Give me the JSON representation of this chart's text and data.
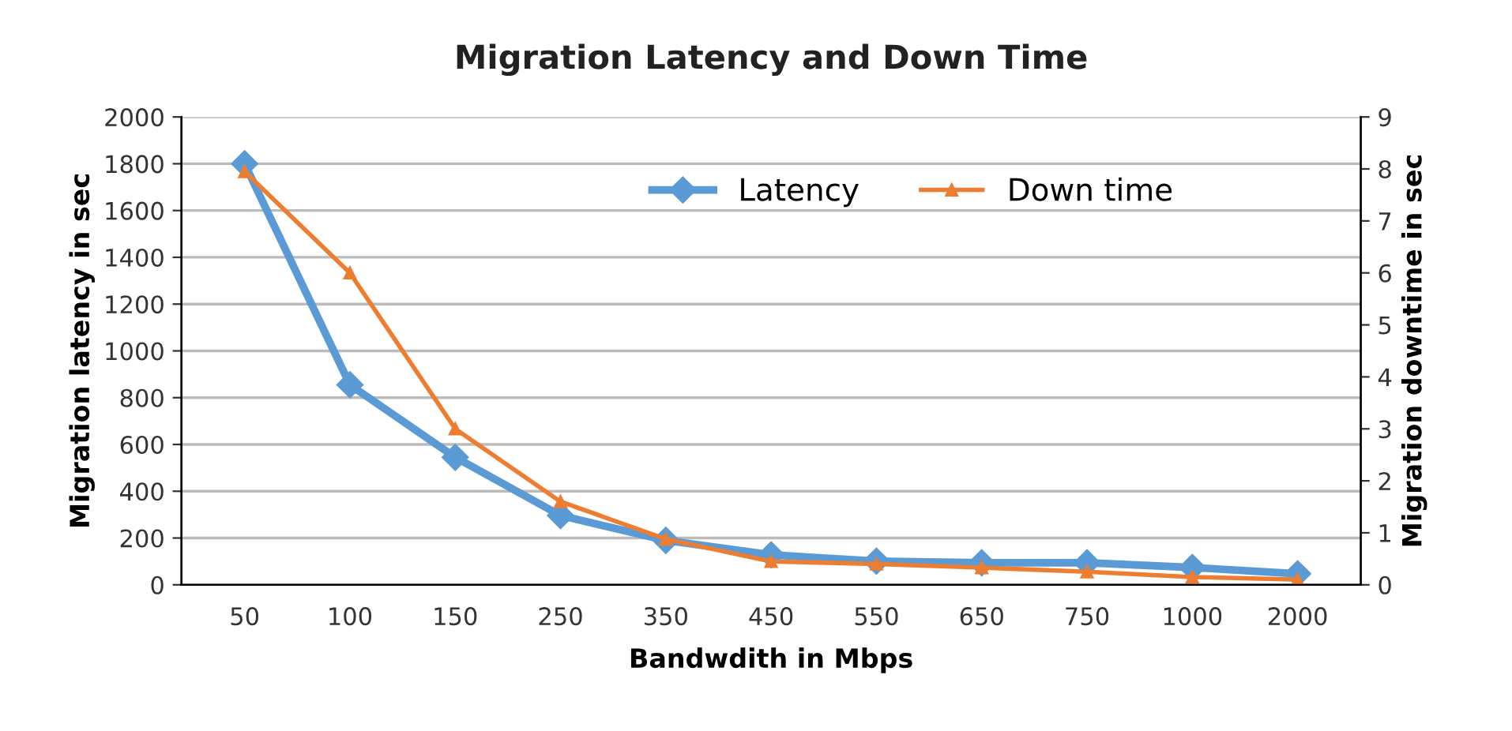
{
  "chart_data": {
    "type": "line",
    "title": "Migration Latency and Down Time",
    "xlabel": "Bandwdith in Mbps",
    "ylabel": "Migration latency in sec",
    "y2label": "Migration downtime in sec",
    "categories": [
      "50",
      "100",
      "150",
      "250",
      "350",
      "450",
      "550",
      "650",
      "750",
      "1000",
      "2000"
    ],
    "series": [
      {
        "name": "Latency",
        "color": "#5b9bd5",
        "marker": "diamond",
        "values": [
          1800,
          855,
          545,
          296,
          190,
          128,
          101,
          94,
          94,
          74,
          47
        ]
      },
      {
        "name": "Down time",
        "color": "#ed7d31",
        "marker": "triangle",
        "axis": "y2",
        "values": [
          7.95,
          6.0,
          3.0,
          1.6,
          0.88,
          0.45,
          0.4,
          0.33,
          0.25,
          0.15,
          0.1
        ]
      }
    ],
    "ylim": [
      0,
      2000
    ],
    "yticks": [
      0,
      200,
      400,
      600,
      800,
      1000,
      1200,
      1400,
      1600,
      1800,
      2000
    ],
    "y2lim": [
      0,
      9
    ],
    "y2ticks": [
      0,
      1,
      2,
      3,
      4,
      5,
      6,
      7,
      8,
      9
    ],
    "grid": "y",
    "legend": "top"
  }
}
